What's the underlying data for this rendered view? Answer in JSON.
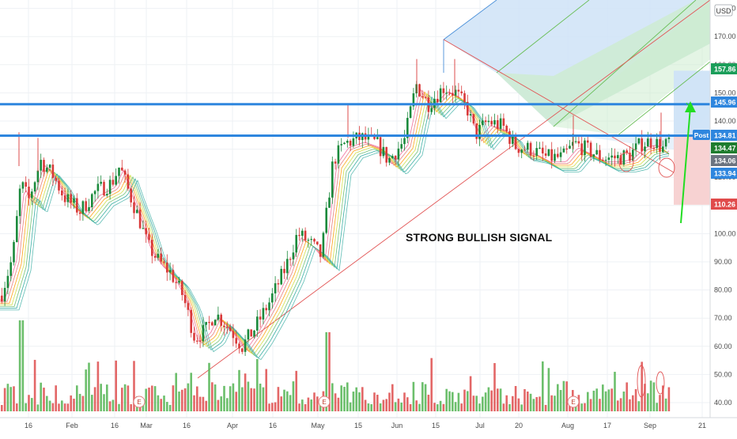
{
  "header": {
    "currency": "USD"
  },
  "annotation": "STRONG BULLISH SIGNAL",
  "colors": {
    "up": "#26a69a",
    "down": "#ef5350",
    "vol_up": "#5cb85c",
    "vol_down": "#e05656",
    "blue_line": "#2e86de",
    "grid": "#eef1f4",
    "ma": [
      "#f06292",
      "#e57373",
      "#ff9800",
      "#cddc39",
      "#66bb6a",
      "#26a69a",
      "#4db6ac"
    ],
    "green_zone": "#cdeccf",
    "blue_zone": "#cfe3f7",
    "red_zone": "#f7d0d0",
    "arrow": "#22dd22"
  },
  "chart_data": {
    "type": "candlestick",
    "title": "",
    "ylim": [
      38,
      181
    ],
    "y_ticks": [
      "40.00",
      "50.00",
      "60.00",
      "70.00",
      "80.00",
      "90.00",
      "100.00",
      "110.00",
      "120.00",
      "130.00",
      "140.00",
      "150.00",
      "160.00",
      "170.00",
      "180.00"
    ],
    "x_ticks": [
      "16",
      "Feb",
      "16",
      "Mar",
      "16",
      "Apr",
      "16",
      "May",
      "15",
      "Jun",
      "15",
      "Jul",
      "20",
      "Aug",
      "17",
      "Sep",
      "21"
    ],
    "price_labels": [
      {
        "text": "157.86",
        "kind": "green"
      },
      {
        "text": "145.96",
        "kind": "blue"
      },
      {
        "text": "Post",
        "kind": "blue-tag"
      },
      {
        "text": "134.81",
        "kind": "blue"
      },
      {
        "text": "134.47",
        "kind": "darkgreen"
      },
      {
        "text": "134.06",
        "kind": "gray"
      },
      {
        "text": "133.94",
        "kind": "blue"
      },
      {
        "text": "110.26",
        "kind": "red"
      }
    ],
    "horizontal_levels": [
      145.96,
      134.81
    ],
    "earnings_markers": [
      "E",
      "E",
      "E"
    ],
    "price_path": [
      {
        "x": 0,
        "p": 78
      },
      {
        "x": 15,
        "p": 92
      },
      {
        "x": 25,
        "p": 118
      },
      {
        "x": 35,
        "p": 112
      },
      {
        "x": 50,
        "p": 126
      },
      {
        "x": 65,
        "p": 121
      },
      {
        "x": 80,
        "p": 113
      },
      {
        "x": 100,
        "p": 108
      },
      {
        "x": 120,
        "p": 115
      },
      {
        "x": 140,
        "p": 118
      },
      {
        "x": 150,
        "p": 124
      },
      {
        "x": 160,
        "p": 116
      },
      {
        "x": 175,
        "p": 105
      },
      {
        "x": 185,
        "p": 96
      },
      {
        "x": 200,
        "p": 90
      },
      {
        "x": 215,
        "p": 86
      },
      {
        "x": 230,
        "p": 78
      },
      {
        "x": 245,
        "p": 63
      },
      {
        "x": 260,
        "p": 66
      },
      {
        "x": 270,
        "p": 72
      },
      {
        "x": 290,
        "p": 66
      },
      {
        "x": 305,
        "p": 60
      },
      {
        "x": 320,
        "p": 66
      },
      {
        "x": 340,
        "p": 76
      },
      {
        "x": 360,
        "p": 88
      },
      {
        "x": 375,
        "p": 100
      },
      {
        "x": 390,
        "p": 97
      },
      {
        "x": 405,
        "p": 92
      },
      {
        "x": 420,
        "p": 126
      },
      {
        "x": 435,
        "p": 132
      },
      {
        "x": 455,
        "p": 134
      },
      {
        "x": 475,
        "p": 132
      },
      {
        "x": 490,
        "p": 126
      },
      {
        "x": 510,
        "p": 133
      },
      {
        "x": 525,
        "p": 153
      },
      {
        "x": 540,
        "p": 146
      },
      {
        "x": 560,
        "p": 152
      },
      {
        "x": 575,
        "p": 150
      },
      {
        "x": 590,
        "p": 144
      },
      {
        "x": 600,
        "p": 135
      },
      {
        "x": 615,
        "p": 140
      },
      {
        "x": 635,
        "p": 138
      },
      {
        "x": 650,
        "p": 131
      },
      {
        "x": 670,
        "p": 130
      },
      {
        "x": 690,
        "p": 127
      },
      {
        "x": 710,
        "p": 127
      },
      {
        "x": 725,
        "p": 132
      },
      {
        "x": 740,
        "p": 130
      },
      {
        "x": 760,
        "p": 127
      },
      {
        "x": 780,
        "p": 127
      },
      {
        "x": 795,
        "p": 128
      },
      {
        "x": 810,
        "p": 132
      },
      {
        "x": 825,
        "p": 133
      },
      {
        "x": 838,
        "p": 130
      },
      {
        "x": 848,
        "p": 134.5
      }
    ]
  }
}
